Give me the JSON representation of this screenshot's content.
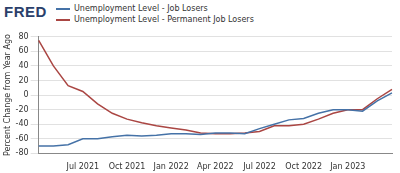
{
  "chart_data": {
    "type": "line",
    "annotations": [
      "FRED"
    ],
    "y_label": "Percent Change from Year Ago",
    "categories": [
      null,
      null,
      null,
      "Jul 2021",
      null,
      null,
      "Oct 2021",
      null,
      null,
      "Jan 2022",
      null,
      null,
      "Apr 2022",
      null,
      null,
      "Jul 2022",
      null,
      null,
      "Oct 2022",
      null,
      null,
      "Jan 2023",
      null,
      null,
      null
    ],
    "series": [
      {
        "name": "Unemployment Level - Job Losers",
        "color": "#4572a7",
        "values": [
          -70,
          -70,
          -68,
          -60,
          -60,
          -57,
          -55,
          -56,
          -55,
          -53,
          -53,
          -54,
          -52,
          -52,
          -53,
          -46,
          -40,
          -34,
          -32,
          -25,
          -20,
          -20,
          -22,
          -8,
          3
        ]
      },
      {
        "name": "Unemployment Level - Permanent Job Losers",
        "color": "#aa4643",
        "values": [
          75,
          40,
          13,
          5,
          -12,
          -25,
          -33,
          -38,
          -42,
          -45,
          -48,
          -52,
          -53,
          -53,
          -52,
          -50,
          -42,
          -42,
          -40,
          -33,
          -25,
          -20,
          -20,
          -5,
          8
        ]
      }
    ],
    "ylim": [
      -80,
      80
    ],
    "yticks": [
      -80,
      -60,
      -40,
      -20,
      0,
      20,
      40,
      60,
      80
    ],
    "grid": true,
    "legend": "top-left"
  }
}
